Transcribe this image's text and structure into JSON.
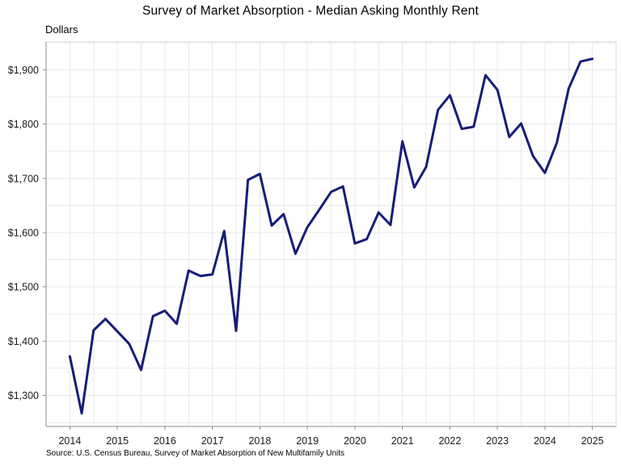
{
  "title": "Survey of Market Absorption - Median Asking Monthly Rent",
  "y_axis_unit_label": "Dollars",
  "source": "Source: U.S. Census Bureau, Survey of Market Absorption of New Multifamily Units",
  "chart_data": {
    "type": "line",
    "title": "Survey of Market Absorption - Median Asking Monthly Rent",
    "xlabel": "",
    "ylabel": "Dollars",
    "frequency": "quarterly",
    "legend_position": "none",
    "grid_on": true,
    "categories": [
      "2014 Q1",
      "2014 Q2",
      "2014 Q3",
      "2014 Q4",
      "2015 Q1",
      "2015 Q2",
      "2015 Q3",
      "2015 Q4",
      "2016 Q1",
      "2016 Q2",
      "2016 Q3",
      "2016 Q4",
      "2017 Q1",
      "2017 Q2",
      "2017 Q3",
      "2017 Q4",
      "2018 Q1",
      "2018 Q2",
      "2018 Q3",
      "2018 Q4",
      "2019 Q1",
      "2019 Q2",
      "2019 Q3",
      "2019 Q4",
      "2020 Q1",
      "2020 Q2",
      "2020 Q3",
      "2020 Q4",
      "2021 Q1",
      "2021 Q2",
      "2021 Q3",
      "2021 Q4",
      "2022 Q1",
      "2022 Q2",
      "2022 Q3",
      "2022 Q4",
      "2023 Q1",
      "2023 Q2",
      "2023 Q3",
      "2023 Q4",
      "2024 Q1",
      "2024 Q2",
      "2024 Q3",
      "2024 Q4",
      "2025 Q1"
    ],
    "series": [
      {
        "name": "Median asking monthly rent (dollars)",
        "color": "#171d78",
        "values": [
          1372,
          1267,
          1420,
          1441,
          1418,
          1395,
          1347,
          1446,
          1456,
          1432,
          1530,
          1520,
          1523,
          1603,
          1419,
          1697,
          1708,
          1613,
          1634,
          1561,
          1610,
          1642,
          1675,
          1685,
          1580,
          1588,
          1637,
          1614,
          1768,
          1683,
          1721,
          1826,
          1853,
          1791,
          1795,
          1890,
          1863,
          1776,
          1801,
          1741,
          1710,
          1765,
          1865,
          1915,
          1920
        ]
      }
    ],
    "xlim": [
      2013.5,
      2025.5
    ],
    "ylim": [
      1243,
      1951
    ],
    "x_ticks": [
      2014,
      2015,
      2016,
      2017,
      2018,
      2019,
      2020,
      2021,
      2022,
      2023,
      2024,
      2025
    ],
    "x_tick_labels": [
      "2014",
      "2015",
      "2016",
      "2017",
      "2018",
      "2019",
      "2020",
      "2021",
      "2022",
      "2023",
      "2024",
      "2025"
    ],
    "y_ticks": [
      1300,
      1400,
      1500,
      1600,
      1700,
      1800,
      1900
    ],
    "y_tick_labels": [
      "$1,300",
      "$1,400",
      "$1,500",
      "$1,600",
      "$1,700",
      "$1,800",
      "$1,900"
    ],
    "grid": {
      "x_interval": 0.5,
      "y_interval": 50
    },
    "colors": {
      "line": "#171d78",
      "gridline": "#e8e8e8",
      "axis": "#8c8c8c",
      "tick_text": "#1a1a1a"
    }
  }
}
